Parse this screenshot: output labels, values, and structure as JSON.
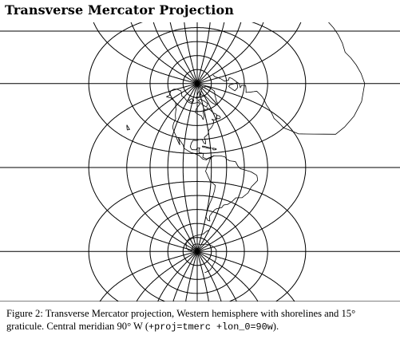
{
  "document": {
    "title": "Transverse Mercator Projection",
    "caption": {
      "prefix": "Figure 2: Transverse Mercator projection, Western hemisphere with shorelines and 15° graticule. Central meridian 90° W (",
      "code": "+proj=tmerc +lon_0=90w",
      "suffix": ")."
    }
  },
  "map": {
    "projection": "Transverse Mercator",
    "central_meridian": "90° W",
    "graticule_spacing": "15°",
    "hemisphere": "Western",
    "features": [
      "graticule",
      "shorelines"
    ],
    "line_color": "#000000"
  }
}
